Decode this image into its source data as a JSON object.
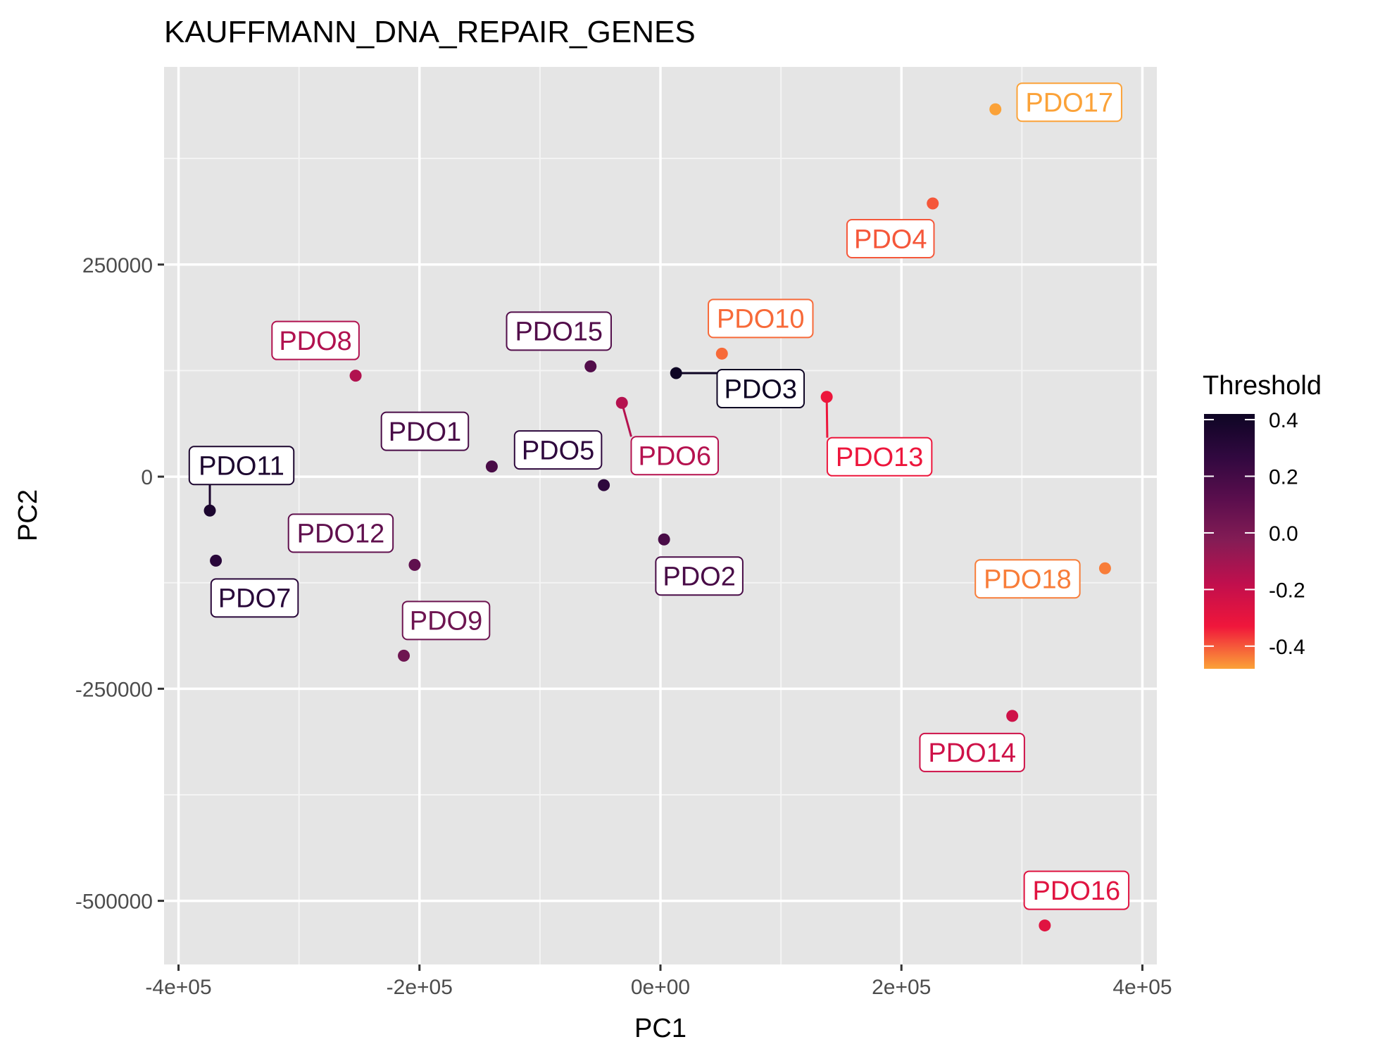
{
  "chart_data": {
    "type": "scatter",
    "title": "KAUFFMANN_DNA_REPAIR_GENES",
    "xlabel": "PC1",
    "ylabel": "PC2",
    "xlim": [
      -412000,
      412000
    ],
    "ylim": [
      -575000,
      483000
    ],
    "grid": true,
    "x_ticks": [
      -400000,
      -200000,
      0,
      200000,
      400000
    ],
    "x_tick_labels": [
      "-4e+05",
      "-2e+05",
      "0e+00",
      "2e+05",
      "4e+05"
    ],
    "y_ticks": [
      -500000,
      -250000,
      0,
      250000
    ],
    "y_tick_labels": [
      "-500000",
      "-250000",
      "0",
      "250000"
    ],
    "legend": {
      "title": "Threshold",
      "position": "right",
      "range": [
        -0.48,
        0.42
      ],
      "ticks": [
        0.4,
        0.2,
        0.0,
        -0.2,
        -0.4
      ],
      "tick_labels": [
        "0.4",
        "0.2",
        "0.0",
        "-0.2",
        "-0.4"
      ],
      "palette": [
        "#fba238",
        "#f0163b",
        "#c10f4d",
        "#851c55",
        "#5a0e4d",
        "#30083f",
        "#0e0524"
      ]
    },
    "points": [
      {
        "label": "PDO1",
        "x": -140000,
        "y": 12000,
        "threshold": 0.18
      },
      {
        "label": "PDO2",
        "x": 3000,
        "y": -74000,
        "threshold": 0.18
      },
      {
        "label": "PDO3",
        "x": 13000,
        "y": 122000,
        "threshold": 0.42
      },
      {
        "label": "PDO4",
        "x": 226000,
        "y": 322000,
        "threshold": -0.4
      },
      {
        "label": "PDO5",
        "x": -47000,
        "y": -10000,
        "threshold": 0.28
      },
      {
        "label": "PDO6",
        "x": -32000,
        "y": 87000,
        "threshold": -0.15
      },
      {
        "label": "PDO7",
        "x": -369000,
        "y": -99000,
        "threshold": 0.3
      },
      {
        "label": "PDO8",
        "x": -253000,
        "y": 119000,
        "threshold": -0.14
      },
      {
        "label": "PDO9",
        "x": -213000,
        "y": -211000,
        "threshold": 0.05
      },
      {
        "label": "PDO10",
        "x": 51000,
        "y": 145000,
        "threshold": -0.42
      },
      {
        "label": "PDO11",
        "x": -374000,
        "y": -40000,
        "threshold": 0.36
      },
      {
        "label": "PDO12",
        "x": -204000,
        "y": -104000,
        "threshold": 0.1
      },
      {
        "label": "PDO13",
        "x": 138000,
        "y": 94000,
        "threshold": -0.32
      },
      {
        "label": "PDO14",
        "x": 292000,
        "y": -282000,
        "threshold": -0.22
      },
      {
        "label": "PDO15",
        "x": -58000,
        "y": 130000,
        "threshold": 0.15
      },
      {
        "label": "PDO16",
        "x": 319000,
        "y": -529000,
        "threshold": -0.28
      },
      {
        "label": "PDO17",
        "x": 278000,
        "y": 433000,
        "threshold": -0.48
      },
      {
        "label": "PDO18",
        "x": 369000,
        "y": -108000,
        "threshold": -0.44
      }
    ]
  }
}
